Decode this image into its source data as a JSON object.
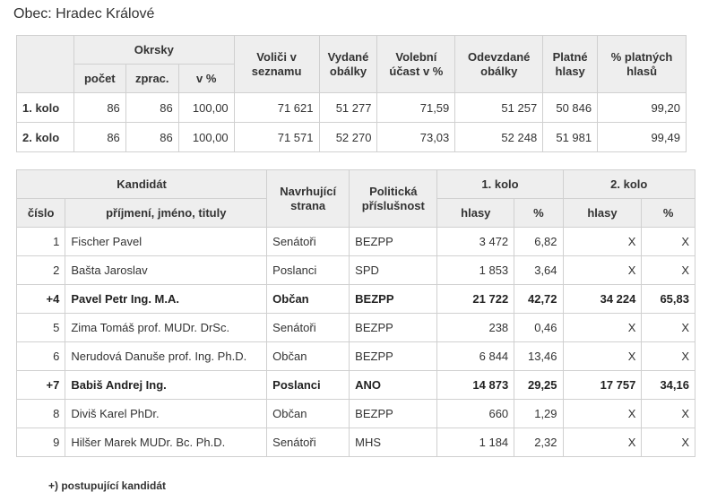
{
  "page_title": "Obec: Hradec Králové",
  "summary": {
    "headers": {
      "okrsky": "Okrsky",
      "pocet": "počet",
      "zprac": "zprac.",
      "v_pct": "v %",
      "volici": "Voliči v seznamu",
      "vydane": "Vydané obálky",
      "ucast": "Volební účast v %",
      "odevzdane": "Odevzdané obálky",
      "platne": "Platné hlasy",
      "pct_platnych": "% platných hlasů"
    },
    "rows": [
      {
        "kolo": "1. kolo",
        "pocet": "86",
        "zprac": "86",
        "v_pct": "100,00",
        "volici": "71 621",
        "vydane": "51 277",
        "ucast": "71,59",
        "odevzdane": "51 257",
        "platne": "50 846",
        "pct_platnych": "99,20"
      },
      {
        "kolo": "2. kolo",
        "pocet": "86",
        "zprac": "86",
        "v_pct": "100,00",
        "volici": "71 571",
        "vydane": "52 270",
        "ucast": "73,03",
        "odevzdane": "52 248",
        "platne": "51 981",
        "pct_platnych": "99,49"
      }
    ]
  },
  "candidates": {
    "headers": {
      "kandidat": "Kandidát",
      "cislo": "číslo",
      "jmeno": "příjmení, jméno, tituly",
      "navrhujici": "Navrhující strana",
      "politicka": "Politická příslušnost",
      "kolo1": "1. kolo",
      "kolo2": "2. kolo",
      "hlasy1": "hlasy",
      "pct1": "%",
      "hlasy2": "hlasy",
      "pct2": "%"
    },
    "rows": [
      {
        "cislo": "1",
        "jmeno": "Fischer Pavel",
        "strana": "Senátoři",
        "prislusnost": "BEZPP",
        "hlasy1": "3 472",
        "pct1": "6,82",
        "hlasy2": "X",
        "pct2": "X",
        "bold": false
      },
      {
        "cislo": "2",
        "jmeno": "Bašta Jaroslav",
        "strana": "Poslanci",
        "prislusnost": "SPD",
        "hlasy1": "1 853",
        "pct1": "3,64",
        "hlasy2": "X",
        "pct2": "X",
        "bold": false
      },
      {
        "cislo": "+4",
        "jmeno": "Pavel Petr Ing. M.A.",
        "strana": "Občan",
        "prislusnost": "BEZPP",
        "hlasy1": "21 722",
        "pct1": "42,72",
        "hlasy2": "34 224",
        "pct2": "65,83",
        "bold": true
      },
      {
        "cislo": "5",
        "jmeno": "Zima Tomáš prof. MUDr. DrSc.",
        "strana": "Senátoři",
        "prislusnost": "BEZPP",
        "hlasy1": "238",
        "pct1": "0,46",
        "hlasy2": "X",
        "pct2": "X",
        "bold": false
      },
      {
        "cislo": "6",
        "jmeno": "Nerudová Danuše prof. Ing. Ph.D.",
        "strana": "Občan",
        "prislusnost": "BEZPP",
        "hlasy1": "6 844",
        "pct1": "13,46",
        "hlasy2": "X",
        "pct2": "X",
        "bold": false
      },
      {
        "cislo": "+7",
        "jmeno": "Babiš Andrej Ing.",
        "strana": "Poslanci",
        "prislusnost": "ANO",
        "hlasy1": "14 873",
        "pct1": "29,25",
        "hlasy2": "17 757",
        "pct2": "34,16",
        "bold": true
      },
      {
        "cislo": "8",
        "jmeno": "Diviš Karel PhDr.",
        "strana": "Občan",
        "prislusnost": "BEZPP",
        "hlasy1": "660",
        "pct1": "1,29",
        "hlasy2": "X",
        "pct2": "X",
        "bold": false
      },
      {
        "cislo": "9",
        "jmeno": "Hilšer Marek MUDr. Bc. Ph.D.",
        "strana": "Senátoři",
        "prislusnost": "MHS",
        "hlasy1": "1 184",
        "pct1": "2,32",
        "hlasy2": "X",
        "pct2": "X",
        "bold": false
      }
    ]
  },
  "footnote": "+) postupující kandidát"
}
